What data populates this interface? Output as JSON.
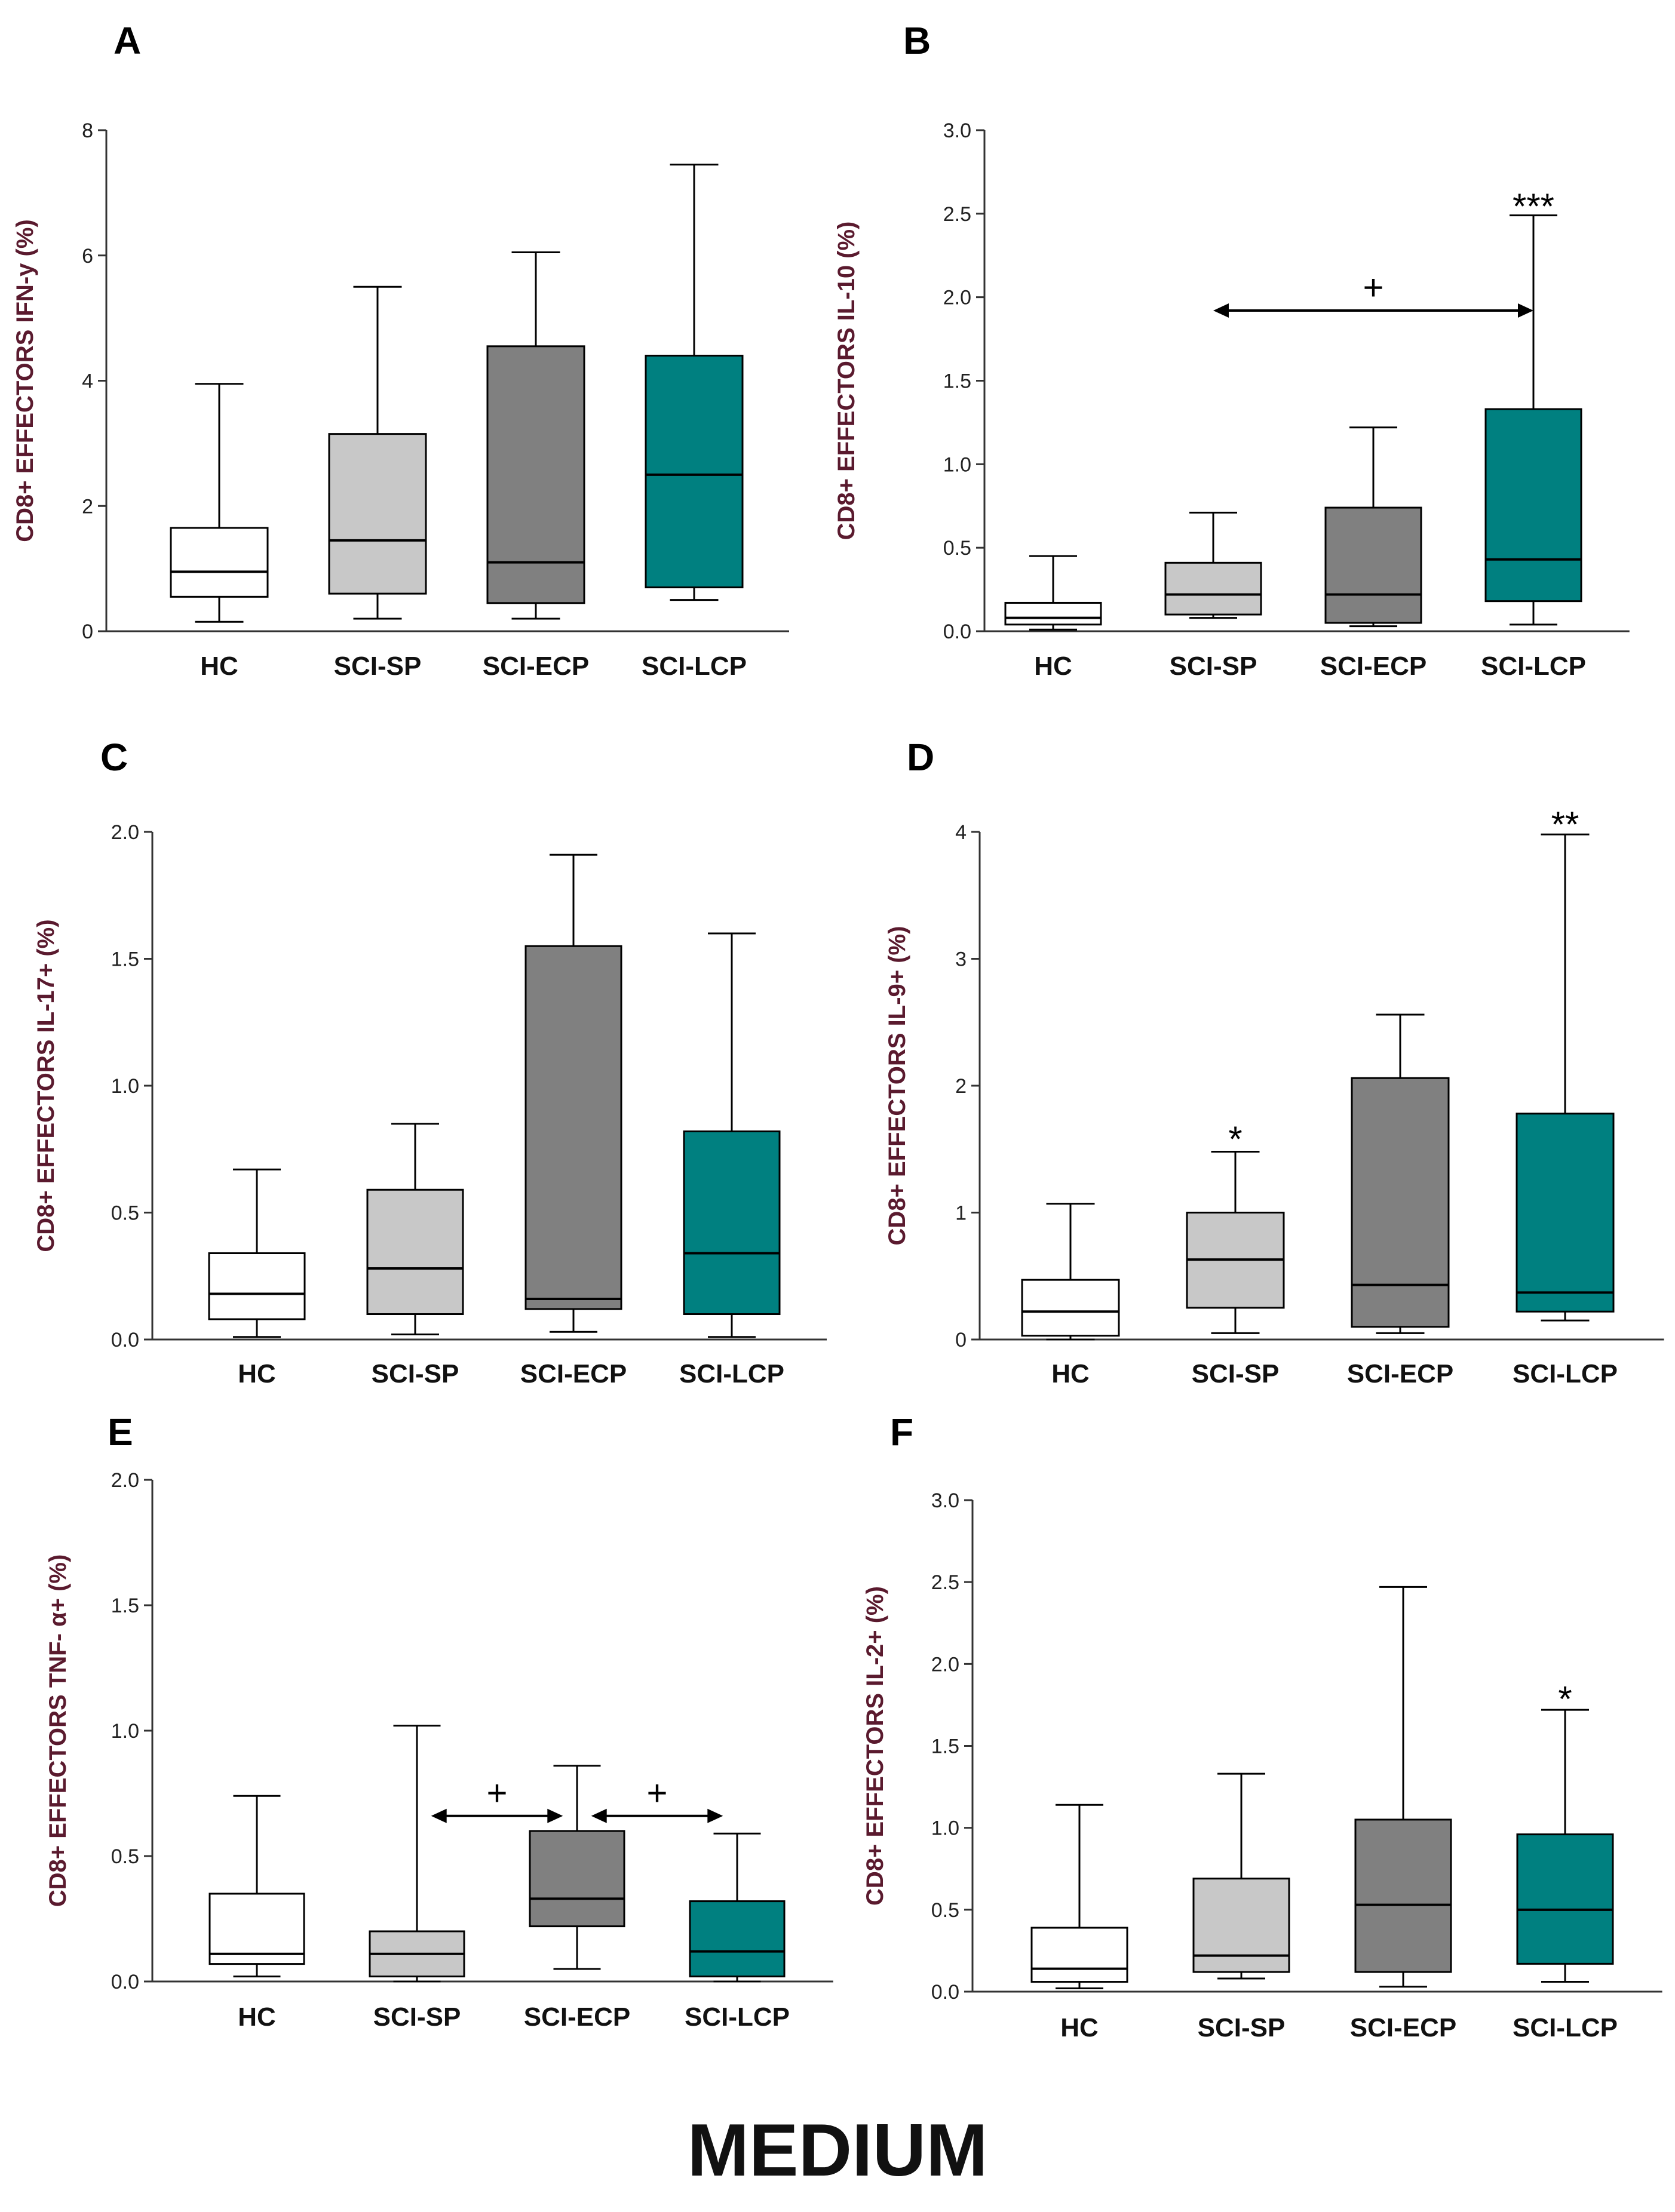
{
  "footer_label": "MEDIUM",
  "colors": {
    "HC": "#ffffff",
    "SCI-SP": "#c8c8c8",
    "SCI-ECP": "#808080",
    "SCI-LCP": "#008080"
  },
  "chart_data": [
    {
      "panel": "A",
      "type": "box",
      "ylabel": "CD8+ EFFECTORS IFN-y (%)",
      "ylim": [
        0,
        8
      ],
      "yticks": [
        "0",
        "2",
        "4",
        "6",
        "8"
      ],
      "categories": [
        "HC",
        "SCI-SP",
        "SCI-ECP",
        "SCI-LCP"
      ],
      "boxes": [
        {
          "min": 0.15,
          "q1": 0.55,
          "median": 0.95,
          "q3": 1.65,
          "max": 3.95
        },
        {
          "min": 0.2,
          "q1": 0.6,
          "median": 1.45,
          "q3": 3.15,
          "max": 5.5
        },
        {
          "min": 0.2,
          "q1": 0.45,
          "median": 1.1,
          "q3": 4.55,
          "max": 6.05
        },
        {
          "min": 0.5,
          "q1": 0.7,
          "median": 2.5,
          "q3": 4.4,
          "max": 7.45
        }
      ],
      "annotations": []
    },
    {
      "panel": "B",
      "type": "box",
      "ylabel": "CD8+ EFFECTORS IL-10 (%)",
      "ylim": [
        0,
        3
      ],
      "yticks": [
        "0.0",
        "0.5",
        "1.0",
        "1.5",
        "2.0",
        "2.5",
        "3.0"
      ],
      "categories": [
        "HC",
        "SCI-SP",
        "SCI-ECP",
        "SCI-LCP"
      ],
      "boxes": [
        {
          "min": 0.01,
          "q1": 0.04,
          "median": 0.08,
          "q3": 0.17,
          "max": 0.45
        },
        {
          "min": 0.08,
          "q1": 0.1,
          "median": 0.22,
          "q3": 0.41,
          "max": 0.71
        },
        {
          "min": 0.03,
          "q1": 0.05,
          "median": 0.22,
          "q3": 0.74,
          "max": 1.22
        },
        {
          "min": 0.04,
          "q1": 0.18,
          "median": 0.43,
          "q3": 1.33,
          "max": 2.49
        }
      ],
      "annotations": [
        {
          "kind": "star",
          "cat": 3,
          "text": "***",
          "y": 2.5
        },
        {
          "kind": "arrow",
          "from": 1,
          "to": 3,
          "y": 1.92,
          "label": "+"
        }
      ]
    },
    {
      "panel": "C",
      "type": "box",
      "ylabel": "CD8+ EFFECTORS IL-17+ (%)",
      "ylim": [
        0,
        2
      ],
      "yticks": [
        "0.0",
        "0.5",
        "1.0",
        "1.5",
        "2.0"
      ],
      "categories": [
        "HC",
        "SCI-SP",
        "SCI-ECP",
        "SCI-LCP"
      ],
      "boxes": [
        {
          "min": 0.01,
          "q1": 0.08,
          "median": 0.18,
          "q3": 0.34,
          "max": 0.67
        },
        {
          "min": 0.02,
          "q1": 0.1,
          "median": 0.28,
          "q3": 0.59,
          "max": 0.85
        },
        {
          "min": 0.03,
          "q1": 0.12,
          "median": 0.16,
          "q3": 1.55,
          "max": 1.91
        },
        {
          "min": 0.01,
          "q1": 0.1,
          "median": 0.34,
          "q3": 0.82,
          "max": 1.6
        }
      ],
      "annotations": []
    },
    {
      "panel": "D",
      "type": "box",
      "ylabel": "CD8+ EFFECTORS IL-9+ (%)",
      "ylim": [
        0,
        4
      ],
      "yticks": [
        "0",
        "1",
        "2",
        "3",
        "4"
      ],
      "categories": [
        "HC",
        "SCI-SP",
        "SCI-ECP",
        "SCI-LCP"
      ],
      "boxes": [
        {
          "min": 0.0,
          "q1": 0.03,
          "median": 0.22,
          "q3": 0.47,
          "max": 1.07
        },
        {
          "min": 0.05,
          "q1": 0.25,
          "median": 0.63,
          "q3": 1.0,
          "max": 1.48
        },
        {
          "min": 0.05,
          "q1": 0.1,
          "median": 0.43,
          "q3": 2.06,
          "max": 2.56
        },
        {
          "min": 0.15,
          "q1": 0.22,
          "median": 0.37,
          "q3": 1.78,
          "max": 3.98
        }
      ],
      "annotations": [
        {
          "kind": "star",
          "cat": 1,
          "text": "*",
          "y": 1.52
        },
        {
          "kind": "star",
          "cat": 3,
          "text": "**",
          "y": 4.0
        }
      ]
    },
    {
      "panel": "E",
      "type": "box",
      "ylabel": "CD8+ EFFECTORS  TNF- α+ (%)",
      "ylim": [
        0,
        2
      ],
      "yticks": [
        "0.0",
        "0.5",
        "1.0",
        "1.5",
        "2.0"
      ],
      "categories": [
        "HC",
        "SCI-SP",
        "SCI-ECP",
        "SCI-LCP"
      ],
      "boxes": [
        {
          "min": 0.02,
          "q1": 0.07,
          "median": 0.11,
          "q3": 0.35,
          "max": 0.74
        },
        {
          "min": 0.0,
          "q1": 0.02,
          "median": 0.11,
          "q3": 0.2,
          "max": 1.02
        },
        {
          "min": 0.05,
          "q1": 0.22,
          "median": 0.33,
          "q3": 0.6,
          "max": 0.86
        },
        {
          "min": 0.0,
          "q1": 0.02,
          "median": 0.12,
          "q3": 0.32,
          "max": 0.59
        }
      ],
      "annotations": [
        {
          "kind": "arrow",
          "from": 1,
          "to": 2,
          "y": 0.66,
          "label": "+"
        },
        {
          "kind": "arrow",
          "from": 2,
          "to": 3,
          "y": 0.66,
          "label": "+"
        }
      ]
    },
    {
      "panel": "F",
      "type": "box",
      "ylabel": "CD8+ EFFECTORS IL-2+ (%)",
      "ylim": [
        0,
        3
      ],
      "yticks": [
        "0.0",
        "0.5",
        "1.0",
        "1.5",
        "2.0",
        "2.5",
        "3.0"
      ],
      "categories": [
        "HC",
        "SCI-SP",
        "SCI-ECP",
        "SCI-LCP"
      ],
      "boxes": [
        {
          "min": 0.02,
          "q1": 0.06,
          "median": 0.14,
          "q3": 0.39,
          "max": 1.14
        },
        {
          "min": 0.08,
          "q1": 0.12,
          "median": 0.22,
          "q3": 0.69,
          "max": 1.33
        },
        {
          "min": 0.03,
          "q1": 0.12,
          "median": 0.53,
          "q3": 1.05,
          "max": 2.47
        },
        {
          "min": 0.06,
          "q1": 0.17,
          "median": 0.5,
          "q3": 0.96,
          "max": 1.72
        }
      ],
      "annotations": [
        {
          "kind": "star",
          "cat": 3,
          "text": "*",
          "y": 1.74
        }
      ]
    }
  ]
}
